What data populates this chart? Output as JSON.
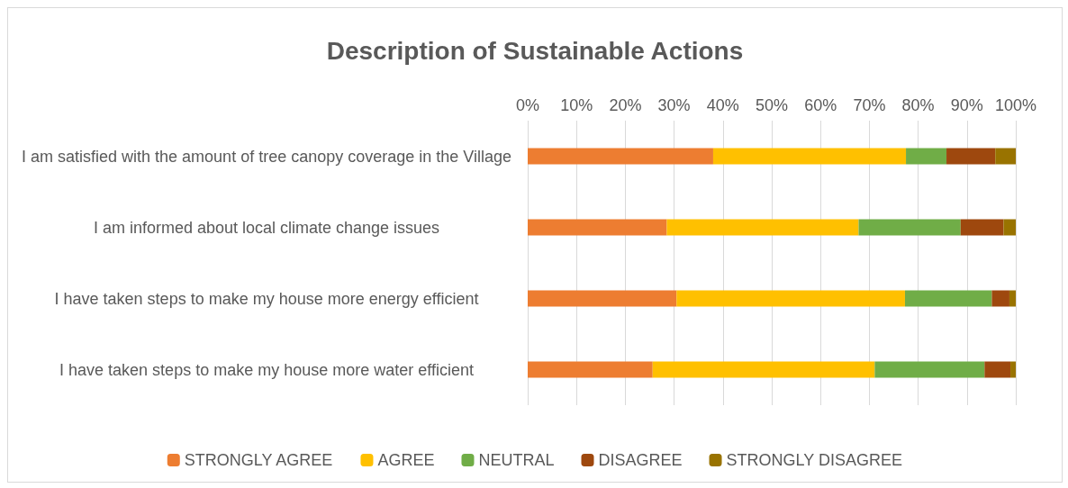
{
  "chart_data": {
    "type": "bar",
    "title": "Description of Sustainable Actions",
    "orientation": "horizontal",
    "stacked": true,
    "categories": [
      "I am satisfied with the amount of tree canopy coverage in the Village",
      "I am informed about local climate change issues",
      "I have taken steps to make my house more energy efficient",
      "I have taken steps to make my house more water efficient"
    ],
    "series": [
      {
        "name": "STRONGLY AGREE",
        "color": "#ed7d31",
        "values": [
          38,
          28.5,
          30.5,
          25.6
        ]
      },
      {
        "name": "AGREE",
        "color": "#ffc000",
        "values": [
          39.5,
          39.3,
          46.8,
          45.5
        ]
      },
      {
        "name": "NEUTRAL",
        "color": "#70ad47",
        "values": [
          8.3,
          20.9,
          17.8,
          22.5
        ]
      },
      {
        "name": "DISAGREE",
        "color": "#9e480e",
        "values": [
          10,
          8.8,
          3.6,
          5.3
        ]
      },
      {
        "name": "STRONGLY DISAGREE",
        "color": "#997300",
        "values": [
          4.2,
          2.5,
          1.3,
          1.1
        ]
      }
    ],
    "xlim": [
      0,
      100
    ],
    "xticks": [
      {
        "value": 0,
        "label": "0%"
      },
      {
        "value": 10,
        "label": "10%"
      },
      {
        "value": 20,
        "label": "20%"
      },
      {
        "value": 30,
        "label": "30%"
      },
      {
        "value": 40,
        "label": "40%"
      },
      {
        "value": 50,
        "label": "50%"
      },
      {
        "value": 60,
        "label": "60%"
      },
      {
        "value": 70,
        "label": "70%"
      },
      {
        "value": 80,
        "label": "80%"
      },
      {
        "value": 90,
        "label": "90%"
      },
      {
        "value": 100,
        "label": "100%"
      }
    ],
    "grid": "x",
    "legend": "bottom"
  }
}
